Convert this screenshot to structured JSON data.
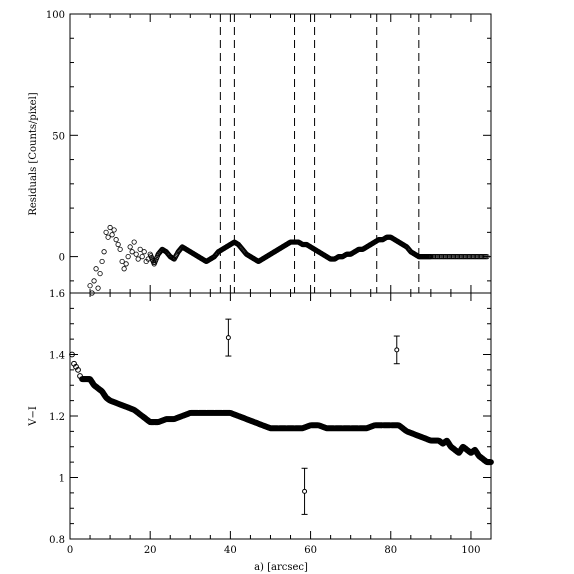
{
  "chart_data": [
    {
      "type": "scatter",
      "panel": "top",
      "ylabel": "Residuals [Counts/pixel]",
      "xlim": [
        0,
        105
      ],
      "ylim": [
        -15,
        100
      ],
      "yticks": [
        0,
        50,
        100
      ],
      "ytick_labels": [
        "0",
        "50",
        "100"
      ],
      "vlines_dashed": [
        37.5,
        41,
        56,
        61,
        76.5,
        87
      ],
      "series": [
        {
          "values_x": [
            5,
            5.5,
            6,
            6.5,
            7,
            7.5,
            8,
            8.5,
            9,
            9.5,
            10,
            10.5,
            11,
            11.5,
            12,
            12.5,
            13,
            13.5,
            14,
            14.5,
            15,
            15.5,
            16,
            16.5,
            17,
            17.5,
            18,
            18.5,
            19,
            19.5,
            20,
            21,
            22,
            23,
            24,
            25,
            26,
            27,
            28,
            29,
            30,
            31,
            32,
            33,
            34,
            35,
            36,
            37,
            38,
            39,
            40,
            41,
            42,
            43,
            44,
            45,
            46,
            47,
            48,
            49,
            50,
            51,
            52,
            53,
            54,
            55,
            56,
            57,
            58,
            59,
            60,
            61,
            62,
            63,
            64,
            65,
            66,
            67,
            68,
            69,
            70,
            71,
            72,
            73,
            74,
            75,
            76,
            77,
            78,
            79,
            80,
            81,
            82,
            83,
            84,
            85,
            86,
            87,
            88,
            89,
            90,
            92,
            94,
            96,
            98,
            100,
            102,
            104
          ],
          "values_y": [
            -12,
            -15,
            -10,
            -5,
            -13,
            -7,
            -2,
            2,
            10,
            8,
            12,
            9,
            11,
            7,
            5,
            3,
            -2,
            -5,
            -3,
            0,
            4,
            2,
            6,
            1,
            -1,
            3,
            0,
            2,
            -2,
            -1,
            1,
            -3,
            1,
            3,
            2,
            0,
            -1,
            2,
            4,
            3,
            2,
            1,
            0,
            -1,
            -2,
            -1,
            0,
            2,
            3,
            4,
            5,
            6,
            5,
            3,
            1,
            0,
            -1,
            -2,
            -1,
            0,
            1,
            2,
            3,
            4,
            5,
            6,
            6,
            6,
            5,
            5,
            4,
            3,
            2,
            1,
            0,
            -1,
            -1,
            0,
            0,
            1,
            1,
            2,
            3,
            3,
            4,
            5,
            6,
            7,
            7,
            8,
            8,
            7,
            6,
            5,
            4,
            2,
            1,
            0,
            0,
            0,
            0,
            0,
            0,
            0,
            0,
            0,
            0,
            0
          ]
        }
      ]
    },
    {
      "type": "scatter",
      "panel": "bottom",
      "xlabel": "a) [arcsec]",
      "ylabel": "V−I",
      "xlim": [
        0,
        105
      ],
      "ylim": [
        0.8,
        1.6
      ],
      "xticks": [
        0,
        20,
        40,
        60,
        80,
        100
      ],
      "xtick_labels": [
        "0",
        "20",
        "40",
        "60",
        "80",
        "100"
      ],
      "yticks": [
        0.8,
        1,
        1.2,
        1.4,
        1.6
      ],
      "ytick_labels": [
        "0.8",
        "1",
        "1.2",
        "1.4",
        "1.6"
      ],
      "series": [
        {
          "values_x": [
            0.5,
            1,
            1.5,
            2,
            2.5,
            3,
            4,
            5,
            6,
            7,
            8,
            9,
            10,
            12,
            14,
            16,
            18,
            19,
            20,
            21,
            22,
            24,
            26,
            28,
            30,
            32,
            34,
            36,
            38,
            40,
            42,
            44,
            46,
            48,
            50,
            52,
            54,
            56,
            58,
            60,
            62,
            64,
            66,
            68,
            70,
            72,
            74,
            76,
            78,
            80,
            82,
            84,
            86,
            88,
            90,
            92,
            93,
            94,
            95,
            96,
            97,
            98,
            99,
            100,
            101,
            102,
            103,
            104,
            105
          ],
          "values_y": [
            1.4,
            1.37,
            1.36,
            1.35,
            1.33,
            1.32,
            1.32,
            1.32,
            1.3,
            1.29,
            1.28,
            1.26,
            1.25,
            1.24,
            1.23,
            1.22,
            1.2,
            1.19,
            1.18,
            1.18,
            1.18,
            1.19,
            1.19,
            1.2,
            1.21,
            1.21,
            1.21,
            1.21,
            1.21,
            1.21,
            1.2,
            1.19,
            1.18,
            1.17,
            1.16,
            1.16,
            1.16,
            1.16,
            1.16,
            1.17,
            1.17,
            1.16,
            1.16,
            1.16,
            1.16,
            1.16,
            1.16,
            1.17,
            1.17,
            1.17,
            1.17,
            1.15,
            1.14,
            1.13,
            1.12,
            1.12,
            1.11,
            1.12,
            1.1,
            1.09,
            1.08,
            1.1,
            1.09,
            1.08,
            1.09,
            1.07,
            1.06,
            1.05,
            1.05
          ]
        }
      ],
      "error_points": [
        {
          "x": 39.5,
          "y": 1.455,
          "err": 0.06
        },
        {
          "x": 58.5,
          "y": 0.955,
          "err": 0.075
        },
        {
          "x": 81.5,
          "y": 1.415,
          "err": 0.045
        }
      ]
    }
  ]
}
